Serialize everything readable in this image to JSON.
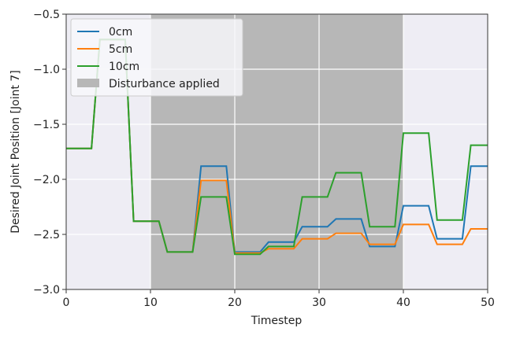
{
  "chart_data": {
    "type": "line",
    "x_label": "Timestep",
    "y_label": "Desired Joint Position [Joint 7]",
    "x": [
      0,
      1,
      2,
      3,
      4,
      5,
      6,
      7,
      8,
      9,
      10,
      11,
      12,
      13,
      14,
      15,
      16,
      17,
      18,
      19,
      20,
      21,
      22,
      23,
      24,
      25,
      26,
      27,
      28,
      29,
      30,
      31,
      32,
      33,
      34,
      35,
      36,
      37,
      38,
      39,
      40,
      41,
      42,
      43,
      44,
      45,
      46,
      47,
      48,
      49,
      50
    ],
    "series": [
      {
        "name": "0cm",
        "color": "#1f77b4",
        "values": [
          -1.72,
          -1.72,
          -1.72,
          -1.72,
          -0.73,
          -0.73,
          -0.73,
          -0.73,
          -2.38,
          -2.38,
          -2.38,
          -2.38,
          -2.66,
          -2.66,
          -2.66,
          -2.66,
          -1.88,
          -1.88,
          -1.88,
          -1.88,
          -2.66,
          -2.66,
          -2.66,
          -2.66,
          -2.57,
          -2.57,
          -2.57,
          -2.57,
          -2.43,
          -2.43,
          -2.43,
          -2.43,
          -2.36,
          -2.36,
          -2.36,
          -2.36,
          -2.61,
          -2.61,
          -2.61,
          -2.61,
          -2.24,
          -2.24,
          -2.24,
          -2.24,
          -2.54,
          -2.54,
          -2.54,
          -2.54,
          -1.88,
          -1.88,
          -1.88
        ]
      },
      {
        "name": "5cm",
        "color": "#ff7f0e",
        "values": [
          -1.72,
          -1.72,
          -1.72,
          -1.72,
          -0.73,
          -0.73,
          -0.73,
          -0.73,
          -2.38,
          -2.38,
          -2.38,
          -2.38,
          -2.66,
          -2.66,
          -2.66,
          -2.66,
          -2.01,
          -2.01,
          -2.01,
          -2.01,
          -2.67,
          -2.67,
          -2.67,
          -2.67,
          -2.63,
          -2.63,
          -2.63,
          -2.63,
          -2.54,
          -2.54,
          -2.54,
          -2.54,
          -2.49,
          -2.49,
          -2.49,
          -2.49,
          -2.59,
          -2.59,
          -2.59,
          -2.59,
          -2.41,
          -2.41,
          -2.41,
          -2.41,
          -2.59,
          -2.59,
          -2.59,
          -2.59,
          -2.45,
          -2.45,
          -2.45
        ]
      },
      {
        "name": "10cm",
        "color": "#2ca02c",
        "values": [
          -1.72,
          -1.72,
          -1.72,
          -1.72,
          -0.73,
          -0.73,
          -0.73,
          -0.73,
          -2.38,
          -2.38,
          -2.38,
          -2.38,
          -2.66,
          -2.66,
          -2.66,
          -2.66,
          -2.16,
          -2.16,
          -2.16,
          -2.16,
          -2.68,
          -2.68,
          -2.68,
          -2.68,
          -2.61,
          -2.61,
          -2.61,
          -2.61,
          -2.16,
          -2.16,
          -2.16,
          -2.16,
          -1.94,
          -1.94,
          -1.94,
          -1.94,
          -2.43,
          -2.43,
          -2.43,
          -2.43,
          -1.58,
          -1.58,
          -1.58,
          -1.58,
          -2.37,
          -2.37,
          -2.37,
          -2.37,
          -1.69,
          -1.69,
          -1.69
        ]
      }
    ],
    "shade": {
      "name": "Disturbance applied",
      "range": [
        10,
        40
      ],
      "color": "#b7b7b7"
    },
    "xlim": [
      0,
      50
    ],
    "xticks": [
      0,
      10,
      20,
      30,
      40,
      50
    ],
    "ylim": [
      -3,
      -0.5
    ],
    "yticks": [
      {
        "value": -3,
        "label": "−3.0"
      },
      {
        "value": -2.5,
        "label": "−2.5"
      },
      {
        "value": -2,
        "label": "−2.0"
      },
      {
        "value": -1.5,
        "label": "−1.5"
      },
      {
        "value": -1,
        "label": "−1.0"
      },
      {
        "value": -0.5,
        "label": "−0.5"
      }
    ],
    "grid": true,
    "legend": "upper-left"
  }
}
